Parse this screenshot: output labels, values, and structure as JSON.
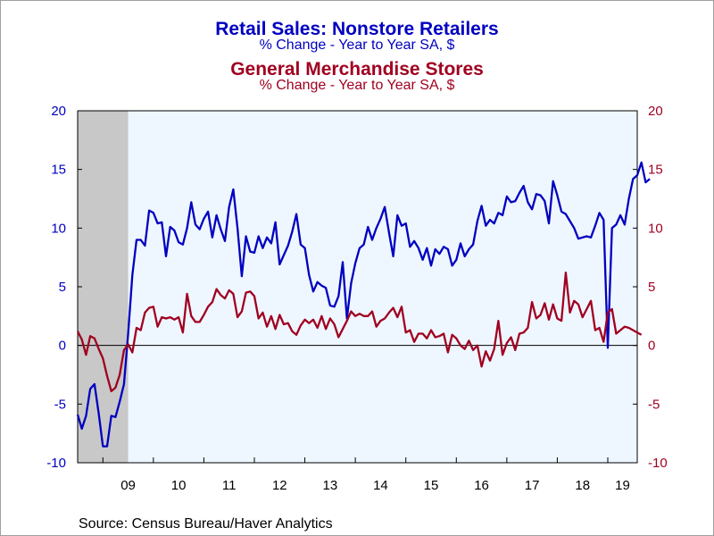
{
  "titles": {
    "series1_title": "Retail Sales: Nonstore Retailers",
    "series1_subtitle": "% Change - Year to Year    SA, $",
    "series2_title": "General Merchandise Stores",
    "series2_subtitle": "% Change - Year to Year    SA, $"
  },
  "source": "Source:  Census Bureau/Haver Analytics",
  "colors": {
    "series1": "#0000c0",
    "series2": "#a00020",
    "plot_bg": "#eef6ff",
    "recession": "#c8c8c8"
  },
  "chart_data": {
    "type": "line",
    "x_start": "2008-07",
    "frequency": "monthly",
    "xlim": [
      "2008-07",
      "2019-08"
    ],
    "x_tick_labels": [
      "09",
      "10",
      "11",
      "12",
      "13",
      "14",
      "15",
      "16",
      "17",
      "18",
      "19"
    ],
    "ylim_left": [
      -10,
      20
    ],
    "ylim_right": [
      -10,
      20
    ],
    "y_ticks_left": [
      "20",
      "15",
      "10",
      "5",
      "0",
      "-5",
      "-10"
    ],
    "y_ticks_right": [
      "20",
      "15",
      "10",
      "5",
      "0",
      "-5",
      "-10"
    ],
    "zero_line": true,
    "shaded_regions": [
      {
        "start": "2008-07",
        "end": "2009-06",
        "label": "recession"
      }
    ],
    "series": [
      {
        "name": "Retail Sales: Nonstore Retailers",
        "axis": "left",
        "values": [
          -5.9,
          -7.1,
          -6.0,
          -3.7,
          -3.3,
          -5.8,
          -8.6,
          -8.6,
          -6.0,
          -6.1,
          -4.8,
          -3.3,
          1.0,
          6.0,
          9.0,
          9.0,
          8.5,
          11.5,
          11.3,
          10.4,
          10.5,
          7.6,
          10.1,
          9.8,
          8.8,
          8.6,
          10.0,
          12.2,
          10.3,
          9.9,
          10.8,
          11.4,
          9.2,
          11.1,
          9.9,
          8.9,
          11.8,
          13.3,
          10.0,
          5.9,
          9.3,
          8.0,
          7.9,
          9.3,
          8.3,
          9.2,
          8.7,
          10.5,
          6.9,
          7.7,
          8.5,
          9.7,
          11.2,
          8.6,
          8.3,
          6.0,
          4.6,
          5.4,
          5.1,
          4.9,
          3.4,
          3.3,
          4.2,
          7.1,
          2.3,
          5.3,
          7.0,
          8.3,
          8.6,
          10.1,
          9.0,
          10.0,
          10.8,
          11.8,
          9.6,
          7.6,
          11.1,
          10.2,
          10.4,
          8.4,
          8.9,
          8.3,
          7.3,
          8.3,
          6.8,
          8.2,
          7.8,
          8.4,
          8.2,
          6.8,
          7.3,
          8.7,
          7.6,
          8.2,
          8.6,
          10.6,
          11.9,
          10.2,
          10.7,
          10.4,
          11.3,
          11.1,
          12.7,
          12.2,
          12.3,
          13.0,
          13.6,
          12.2,
          11.6,
          12.9,
          12.8,
          12.3,
          10.4,
          14.0,
          12.8,
          11.4,
          11.2,
          10.6,
          10.0,
          9.1,
          9.2,
          9.3,
          9.2,
          10.2,
          11.3,
          10.7,
          -0.2,
          10.0,
          10.3,
          11.1,
          10.3,
          12.5,
          14.2,
          14.5,
          15.6,
          13.9,
          14.2
        ]
      },
      {
        "name": "General Merchandise Stores",
        "axis": "right",
        "values": [
          1.2,
          0.5,
          -0.8,
          0.8,
          0.6,
          -0.3,
          -1.1,
          -2.6,
          -3.9,
          -3.6,
          -2.5,
          -0.4,
          0.1,
          -0.6,
          1.5,
          1.3,
          2.8,
          3.2,
          3.3,
          1.6,
          2.4,
          2.3,
          2.4,
          2.2,
          2.4,
          1.1,
          4.4,
          2.5,
          2.0,
          2.0,
          2.6,
          3.3,
          3.7,
          4.8,
          4.3,
          4.0,
          4.7,
          4.4,
          2.4,
          2.9,
          4.5,
          4.6,
          4.2,
          2.3,
          2.8,
          1.6,
          2.5,
          1.4,
          2.6,
          1.8,
          1.9,
          1.2,
          0.9,
          1.7,
          2.2,
          1.9,
          2.2,
          1.5,
          2.5,
          1.4,
          2.3,
          1.8,
          0.7,
          1.4,
          2.1,
          2.9,
          2.5,
          2.7,
          2.5,
          2.5,
          2.9,
          1.6,
          2.1,
          2.3,
          2.8,
          3.2,
          2.4,
          3.3,
          1.1,
          1.3,
          0.3,
          1.0,
          1.0,
          0.6,
          1.3,
          0.7,
          0.8,
          1.0,
          -0.6,
          0.9,
          0.6,
          0.0,
          -0.3,
          0.4,
          -0.4,
          0.0,
          -1.8,
          -0.5,
          -1.3,
          -0.3,
          2.1,
          -0.8,
          0.2,
          0.7,
          -0.4,
          1.0,
          1.1,
          1.5,
          3.7,
          2.3,
          2.6,
          3.6,
          2.2,
          3.5,
          2.3,
          2.1,
          6.2,
          2.8,
          3.8,
          3.5,
          2.4,
          3.1,
          3.8,
          1.3,
          1.5,
          0.3,
          2.8,
          3.1,
          1.0,
          1.3,
          1.6,
          1.5,
          1.3,
          1.1,
          0.9
        ]
      }
    ]
  }
}
